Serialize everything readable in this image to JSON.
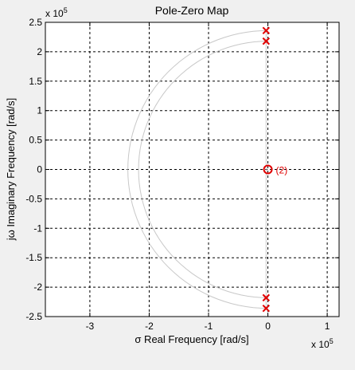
{
  "chart_data": {
    "type": "scatter",
    "title": "Pole-Zero Map",
    "xlabel": "σ Real Frequency [rad/s]",
    "ylabel": "jω Imaginary Frequency [rad/s]",
    "xlim": [
      -3.75,
      1.2
    ],
    "ylim": [
      -2.5,
      2.5
    ],
    "x_scale_label": "x 10",
    "x_scale_exp": "5",
    "y_scale_label": "x 10",
    "y_scale_exp": "5",
    "x_ticks": [
      -3,
      -2,
      -1,
      0,
      1
    ],
    "x_tick_labels": [
      "-3",
      "-2",
      "-1",
      "0",
      "1"
    ],
    "y_ticks": [
      2.5,
      2,
      1.5,
      1,
      0.5,
      0,
      -0.5,
      -1,
      -1.5,
      -2,
      -2.5
    ],
    "y_tick_labels": [
      "2.5",
      "2",
      "1.5",
      "1",
      "0.5",
      "0",
      "-0.5",
      "-1",
      "-1.5",
      "-2",
      "-2.5"
    ],
    "grid": true,
    "poles": [
      {
        "x": -0.03,
        "y": 2.36
      },
      {
        "x": -0.03,
        "y": 2.18
      },
      {
        "x": -0.03,
        "y": -2.18
      },
      {
        "x": -0.03,
        "y": -2.36
      }
    ],
    "zeros": [
      {
        "x": 0,
        "y": 0,
        "multiplicity_label": "(2)"
      }
    ],
    "damping_arcs": [
      {
        "radius": 2.36
      },
      {
        "radius": 2.18
      }
    ],
    "colors": {
      "marker": "#e00000",
      "grid": "#000000",
      "arc": "#c8c8c8",
      "background": "#f0f0f0",
      "axes_bg": "#ffffff"
    }
  }
}
